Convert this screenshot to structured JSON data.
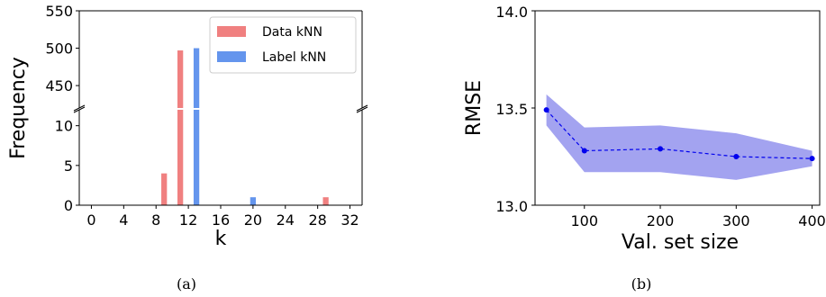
{
  "chart_data": [
    {
      "type": "bar",
      "panel_label": "(a)",
      "xlabel": "k",
      "ylabel": "Frequency",
      "xlim": [
        -1.5,
        33.5
      ],
      "x_ticks": [
        0,
        4,
        8,
        12,
        16,
        20,
        24,
        28,
        32
      ],
      "broken_y_axis": true,
      "upper_ylim": [
        420,
        550
      ],
      "upper_ticks": [
        450,
        500,
        550
      ],
      "lower_ylim": [
        0,
        12
      ],
      "lower_ticks": [
        0,
        5,
        10
      ],
      "legend_position": "upper-right",
      "series": [
        {
          "name": "Data kNN",
          "color": "#F08080",
          "x": [
            9,
            11,
            29
          ],
          "values": [
            4,
            497,
            1
          ]
        },
        {
          "name": "Label kNN",
          "color": "#6495ED",
          "x": [
            13,
            20
          ],
          "values": [
            500,
            1
          ]
        }
      ]
    },
    {
      "type": "line",
      "panel_label": "(b)",
      "xlabel": "Val. set size",
      "ylabel": "RMSE",
      "xlim": [
        35,
        410
      ],
      "ylim": [
        13.0,
        14.0
      ],
      "x_ticks": [
        100,
        200,
        300,
        400
      ],
      "y_ticks": [
        "13.0",
        "13.5",
        "14.0"
      ],
      "line_color": "#0000EE",
      "band_color": "#9999EE",
      "series": [
        {
          "x": [
            50,
            100,
            200,
            300,
            400
          ],
          "values": [
            13.49,
            13.28,
            13.29,
            13.25,
            13.24
          ],
          "upper": [
            13.57,
            13.4,
            13.41,
            13.37,
            13.28
          ],
          "lower": [
            13.41,
            13.17,
            13.17,
            13.13,
            13.2
          ]
        }
      ]
    }
  ]
}
